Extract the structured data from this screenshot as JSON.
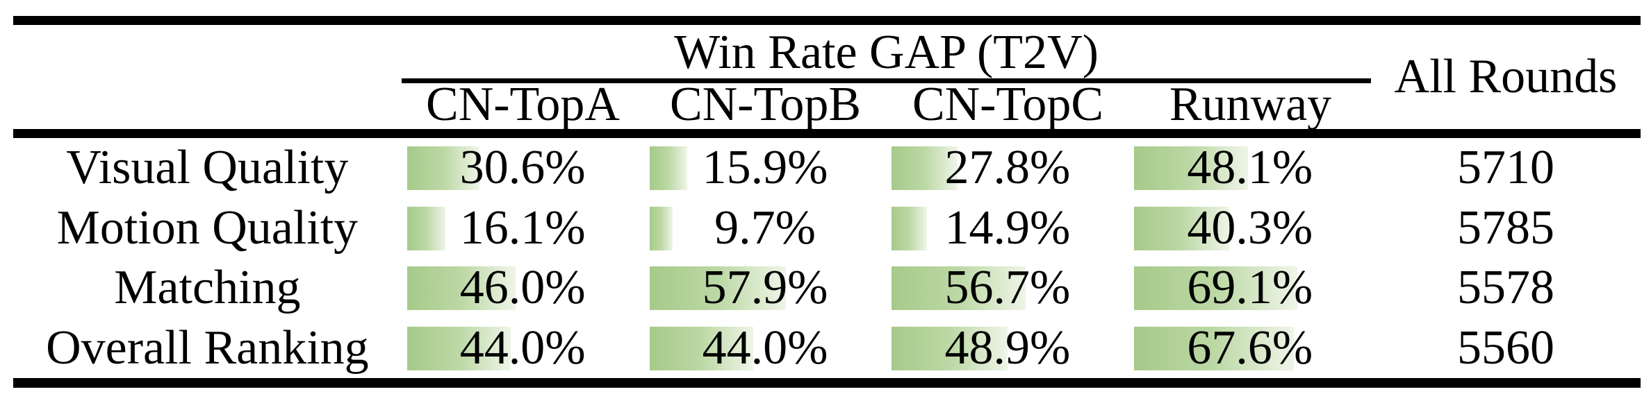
{
  "table": {
    "group_header": "Win Rate GAP (T2V)",
    "all_rounds_header": "All Rounds",
    "columns": [
      "CN-TopA",
      "CN-TopB",
      "CN-TopC",
      "Runway"
    ],
    "rows": [
      {
        "label": "Visual Quality",
        "cells": [
          {
            "text": "30.6%",
            "value": 30.6
          },
          {
            "text": "15.9%",
            "value": 15.9
          },
          {
            "text": "27.8%",
            "value": 27.8
          },
          {
            "text": "48.1%",
            "value": 48.1
          }
        ],
        "all_rounds": "5710"
      },
      {
        "label": "Motion Quality",
        "cells": [
          {
            "text": "16.1%",
            "value": 16.1
          },
          {
            "text": "9.7%",
            "value": 9.7
          },
          {
            "text": "14.9%",
            "value": 14.9
          },
          {
            "text": "40.3%",
            "value": 40.3
          }
        ],
        "all_rounds": "5785"
      },
      {
        "label": "Matching",
        "cells": [
          {
            "text": "46.0%",
            "value": 46.0
          },
          {
            "text": "57.9%",
            "value": 57.9
          },
          {
            "text": "56.7%",
            "value": 56.7
          },
          {
            "text": "69.1%",
            "value": 69.1
          }
        ],
        "all_rounds": "5578"
      },
      {
        "label": "Overall Ranking",
        "cells": [
          {
            "text": "44.0%",
            "value": 44.0
          },
          {
            "text": "44.0%",
            "value": 44.0
          },
          {
            "text": "48.9%",
            "value": 48.9
          },
          {
            "text": "67.6%",
            "value": 67.6
          }
        ],
        "all_rounds": "5560"
      }
    ]
  },
  "colors": {
    "bar_gradient_start": "#a6ca8a",
    "bar_gradient_end": "#eff5e8",
    "rule_color": "#000000",
    "text_color": "#000000"
  },
  "chart_data": {
    "type": "table",
    "title": "Win Rate GAP (T2V)",
    "row_categories": [
      "Visual Quality",
      "Motion Quality",
      "Matching",
      "Overall Ranking"
    ],
    "columns": [
      "CN-TopA",
      "CN-TopB",
      "CN-TopC",
      "Runway",
      "All Rounds"
    ],
    "series": [
      {
        "name": "CN-TopA",
        "unit": "%",
        "values": [
          30.6,
          16.1,
          46.0,
          44.0
        ]
      },
      {
        "name": "CN-TopB",
        "unit": "%",
        "values": [
          15.9,
          9.7,
          57.9,
          44.0
        ]
      },
      {
        "name": "CN-TopC",
        "unit": "%",
        "values": [
          27.8,
          14.9,
          56.7,
          48.9
        ]
      },
      {
        "name": "Runway",
        "unit": "%",
        "values": [
          48.1,
          40.3,
          69.1,
          67.6
        ]
      },
      {
        "name": "All Rounds",
        "unit": "count",
        "values": [
          5710,
          5785,
          5578,
          5560
        ]
      }
    ],
    "bar_scale": "in-cell horizontal bars, width proportional to percentage (100% = full column width)"
  }
}
